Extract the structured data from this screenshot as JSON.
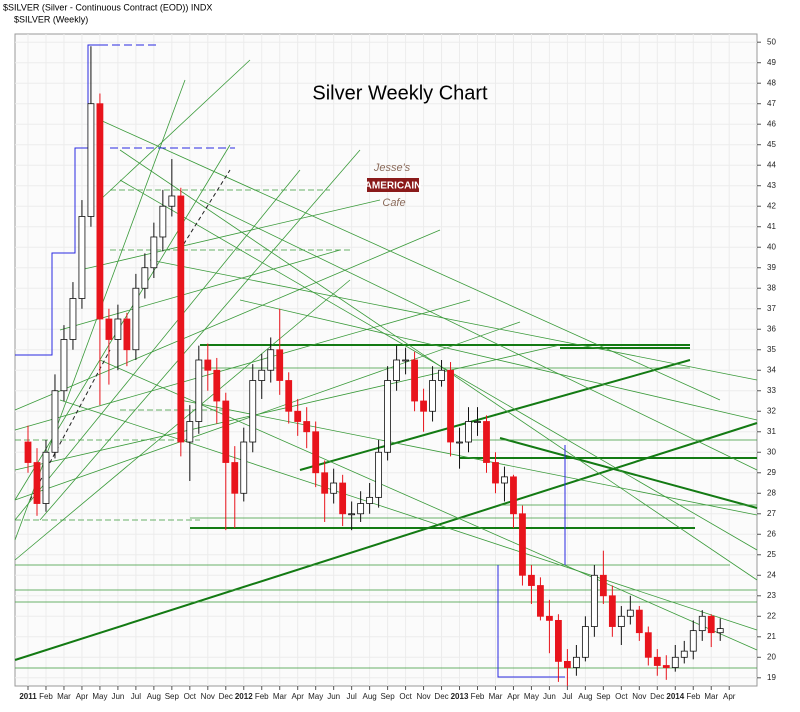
{
  "chart_data": {
    "type": "candlestick",
    "header": "$SILVER (Silver - Continuous Contract (EOD)) INDX",
    "subheader": "$SILVER (Weekly)",
    "title": "Silver Weekly Chart",
    "logo": [
      "Jesse's",
      "AMERICAIN",
      "Cafe"
    ],
    "categories": [
      "2011",
      null,
      "Feb",
      null,
      "Mar",
      null,
      "Apr",
      null,
      "May",
      null,
      "Jun",
      null,
      "Jul",
      null,
      "Aug",
      null,
      "Sep",
      null,
      "Oct",
      null,
      "Nov",
      null,
      "Dec",
      null,
      "2012",
      null,
      "Feb",
      null,
      "Mar",
      null,
      "Apr",
      null,
      "May",
      null,
      "Jun",
      null,
      "Jul",
      null,
      "Aug",
      null,
      "Sep",
      null,
      "Oct",
      null,
      "Nov",
      null,
      "Dec",
      null,
      "2013",
      null,
      "Feb",
      null,
      "Mar",
      null,
      "Apr",
      null,
      "May",
      null,
      "Jun",
      null,
      "Jul",
      null,
      "Aug",
      null,
      "Sep",
      null,
      "Oct",
      null,
      "Nov",
      null,
      "Dec",
      null,
      "2014",
      null,
      "Feb",
      null,
      "Mar",
      null,
      "Apr",
      null
    ],
    "open": [
      30.5,
      29.5,
      27.5,
      30.0,
      33.0,
      35.5,
      37.5,
      41.5,
      47.0,
      36.5,
      35.5,
      36.5,
      35.0,
      38.0,
      39.0,
      40.5,
      42.0,
      42.5,
      30.5,
      31.5,
      34.5,
      34.0,
      32.5,
      29.5,
      28.0,
      30.5,
      33.5,
      34.0,
      35.0,
      33.5,
      32.0,
      31.5,
      31.0,
      29.0,
      28.0,
      28.5,
      27.0,
      27.0,
      27.5,
      27.8,
      30.0,
      33.5,
      34.5,
      34.5,
      32.5,
      32.0,
      33.5,
      34.0,
      30.5,
      30.5,
      31.5,
      31.5,
      29.5,
      28.5,
      28.8,
      27.0,
      24.0,
      23.5,
      22.0,
      21.8,
      19.8,
      19.5,
      20.0,
      21.5,
      24.0,
      23.0,
      21.5,
      22.0,
      22.3,
      21.2,
      20.0,
      19.6,
      19.5,
      20.0,
      20.3,
      21.3,
      22.0,
      21.2,
      null,
      null
    ],
    "high": [
      31.3,
      30.2,
      30.6,
      33.8,
      36.2,
      38.3,
      42.3,
      49.8,
      47.5,
      37.0,
      37.2,
      36.8,
      38.7,
      39.7,
      41.2,
      42.8,
      44.3,
      42.9,
      32.3,
      35.2,
      35.3,
      34.6,
      32.9,
      30.3,
      31.2,
      34.3,
      34.8,
      35.6,
      37.0,
      33.9,
      32.6,
      32.2,
      31.5,
      29.6,
      29.2,
      28.9,
      27.6,
      28.1,
      28.5,
      30.6,
      34.2,
      35.2,
      35.1,
      34.9,
      33.1,
      34.2,
      34.5,
      34.4,
      31.2,
      32.2,
      32.2,
      31.8,
      30.0,
      29.3,
      28.9,
      27.4,
      24.5,
      23.9,
      22.8,
      22.1,
      20.4,
      20.6,
      22.0,
      24.5,
      25.2,
      23.5,
      22.5,
      23.0,
      22.5,
      21.5,
      20.4,
      20.1,
      20.6,
      20.8,
      21.8,
      22.3,
      22.1,
      21.9,
      null,
      null
    ],
    "low": [
      29.0,
      26.9,
      27.1,
      29.7,
      32.5,
      35.0,
      37.0,
      41.0,
      32.3,
      33.3,
      34.0,
      34.2,
      34.5,
      37.5,
      38.5,
      39.8,
      41.5,
      29.8,
      28.6,
      30.9,
      33.0,
      31.4,
      26.2,
      26.3,
      27.6,
      30.0,
      32.6,
      33.4,
      32.8,
      31.4,
      30.8,
      30.2,
      28.3,
      26.6,
      27.5,
      26.4,
      26.2,
      26.6,
      27.0,
      27.3,
      29.6,
      33.0,
      33.8,
      32.0,
      31.0,
      31.5,
      33.2,
      29.8,
      29.2,
      30.0,
      30.8,
      29.0,
      28.0,
      27.6,
      26.3,
      23.5,
      22.6,
      21.8,
      20.2,
      18.8,
      18.6,
      19.1,
      19.8,
      21.0,
      22.6,
      21.0,
      20.6,
      21.6,
      20.8,
      19.6,
      19.1,
      18.9,
      19.3,
      19.7,
      19.9,
      20.8,
      20.5,
      20.8,
      null,
      null
    ],
    "close": [
      29.5,
      27.5,
      30.0,
      33.0,
      35.5,
      37.5,
      41.5,
      47.0,
      36.5,
      35.5,
      36.5,
      35.0,
      38.0,
      39.0,
      40.5,
      42.0,
      42.5,
      30.5,
      31.5,
      34.5,
      34.0,
      32.5,
      29.5,
      28.0,
      30.5,
      33.5,
      34.0,
      35.0,
      33.5,
      32.0,
      31.5,
      31.0,
      29.0,
      28.0,
      28.5,
      27.0,
      27.0,
      27.5,
      27.8,
      30.0,
      33.5,
      34.5,
      34.5,
      32.5,
      32.0,
      33.5,
      34.0,
      30.5,
      30.5,
      31.5,
      31.5,
      29.5,
      28.5,
      28.8,
      27.0,
      24.0,
      23.5,
      22.0,
      21.8,
      19.8,
      19.5,
      20.0,
      21.5,
      24.0,
      23.0,
      21.5,
      22.0,
      22.3,
      21.2,
      20.0,
      19.6,
      19.5,
      20.0,
      20.3,
      21.3,
      22.0,
      21.2,
      21.4,
      null,
      null
    ],
    "up_color": "#ffffff",
    "down_color": "#e8141c",
    "ylim": [
      18.6,
      50.4
    ],
    "yticks": [
      19,
      20,
      21,
      22,
      23,
      24,
      25,
      26,
      27,
      28,
      29,
      30,
      31,
      32,
      33,
      34,
      35,
      36,
      37,
      38,
      39,
      40,
      41,
      42,
      43,
      44,
      45,
      46,
      47,
      48,
      49,
      50
    ],
    "grid": true
  }
}
